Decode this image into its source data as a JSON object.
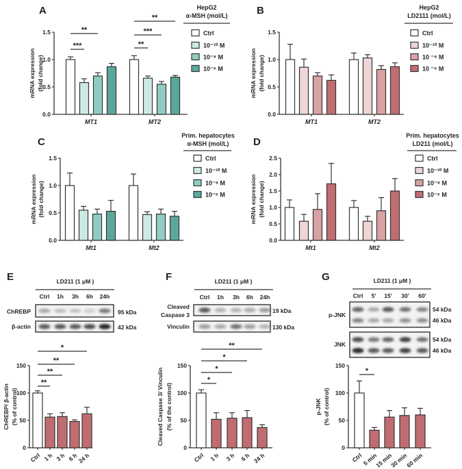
{
  "chart_data": [
    {
      "panel": "A",
      "type": "bar",
      "legend_title": [
        "HepG2",
        "α-MSH (mol/L)"
      ],
      "ylabel": [
        "mRNA expression",
        "(fold change)"
      ],
      "ylim": [
        0,
        1.5
      ],
      "yticks": [
        "0.0",
        "0.5",
        "1.0",
        "1.5"
      ],
      "categories": [
        "MT1",
        "MT2"
      ],
      "series": [
        {
          "name": "Ctrl",
          "color": "#ffffff",
          "values": [
            1.0,
            1.0
          ],
          "errors": [
            0.05,
            0.07
          ]
        },
        {
          "name": "10⁻¹⁰ M",
          "color": "#cde9e4",
          "values": [
            0.58,
            0.66
          ],
          "errors": [
            0.07,
            0.04
          ]
        },
        {
          "name": "10⁻⁸ M",
          "color": "#8fcdc3",
          "values": [
            0.7,
            0.55
          ],
          "errors": [
            0.06,
            0.05
          ]
        },
        {
          "name": "10⁻⁶ M",
          "color": "#5aa89c",
          "values": [
            0.87,
            0.68
          ],
          "errors": [
            0.06,
            0.03
          ]
        }
      ],
      "significance": [
        {
          "group": 0,
          "from": 0,
          "to": 1,
          "label": "***"
        },
        {
          "group": 0,
          "from": 0,
          "to": 2,
          "label": "**"
        },
        {
          "group": 1,
          "from": 0,
          "to": 1,
          "label": "**"
        },
        {
          "group": 1,
          "from": 0,
          "to": 2,
          "label": "***"
        },
        {
          "group": 1,
          "from": 0,
          "to": 3,
          "label": "**"
        }
      ]
    },
    {
      "panel": "B",
      "type": "bar",
      "legend_title": [
        "HepG2",
        "LD2111 (mol/L)"
      ],
      "ylabel": [
        "mRNA expression",
        "(fold change)"
      ],
      "ylim": [
        0,
        1.5
      ],
      "yticks": [
        "0.0",
        "0.5",
        "1.0",
        "1.5"
      ],
      "categories": [
        "MT1",
        "MT2"
      ],
      "series": [
        {
          "name": "Ctrl",
          "color": "#ffffff",
          "values": [
            1.0,
            1.0
          ],
          "errors": [
            0.28,
            0.12
          ]
        },
        {
          "name": "10⁻¹⁰ M",
          "color": "#eed5d6",
          "values": [
            0.86,
            1.03
          ],
          "errors": [
            0.15,
            0.06
          ]
        },
        {
          "name": "10 ⁻⁸ M",
          "color": "#d8a2a4",
          "values": [
            0.7,
            0.82
          ],
          "errors": [
            0.06,
            0.07
          ]
        },
        {
          "name": "10 ⁻⁶ M",
          "color": "#c06d72",
          "values": [
            0.62,
            0.87
          ],
          "errors": [
            0.1,
            0.07
          ]
        }
      ],
      "significance": []
    },
    {
      "panel": "C",
      "type": "bar",
      "legend_title": [
        "Prim. hepatocytes",
        "α-MSH (mol/L)"
      ],
      "ylabel": [
        "mRNA expression",
        "(fold change)"
      ],
      "ylim": [
        0,
        1.5
      ],
      "yticks": [
        "0.0",
        "0.5",
        "1.0",
        "1.5"
      ],
      "categories": [
        "Mt1",
        "Mt2"
      ],
      "series": [
        {
          "name": "Ctrl",
          "color": "#ffffff",
          "values": [
            1.0,
            1.0
          ],
          "errors": [
            0.23,
            0.21
          ]
        },
        {
          "name": "10⁻¹⁰ M",
          "color": "#cde9e4",
          "values": [
            0.55,
            0.47
          ],
          "errors": [
            0.07,
            0.05
          ]
        },
        {
          "name": "10⁻⁸ M",
          "color": "#8fcdc3",
          "values": [
            0.48,
            0.48
          ],
          "errors": [
            0.09,
            0.09
          ]
        },
        {
          "name": "10⁻⁶ M",
          "color": "#5aa89c",
          "values": [
            0.53,
            0.44
          ],
          "errors": [
            0.2,
            0.09
          ]
        }
      ],
      "significance": []
    },
    {
      "panel": "D",
      "type": "bar",
      "legend_title": [
        "Prim. hepatocytes",
        "LD211 (mol/L)"
      ],
      "ylabel": [
        "mRNA expression",
        "(fold change)"
      ],
      "ylim": [
        0,
        2.5
      ],
      "yticks": [
        "0.0",
        "0.5",
        "1.0",
        "1.5",
        "2.0",
        "2.5"
      ],
      "categories": [
        "Mt1",
        "Mt2"
      ],
      "series": [
        {
          "name": "Ctrl",
          "color": "#ffffff",
          "values": [
            1.0,
            1.0
          ],
          "errors": [
            0.23,
            0.21
          ]
        },
        {
          "name": "10⁻¹⁰ M",
          "color": "#eed5d6",
          "values": [
            0.58,
            0.58
          ],
          "errors": [
            0.21,
            0.15
          ]
        },
        {
          "name": "10⁻⁸ M",
          "color": "#d8a2a4",
          "values": [
            0.94,
            0.9
          ],
          "errors": [
            0.48,
            0.4
          ]
        },
        {
          "name": "10⁻⁶ M",
          "color": "#c06d72",
          "values": [
            1.72,
            1.5
          ],
          "errors": [
            0.62,
            0.38
          ]
        }
      ],
      "significance": []
    },
    {
      "panel": "E",
      "type": "bar",
      "ylabel": [
        "ChREBP/ β-actin",
        "(% of control)"
      ],
      "ylim": [
        0,
        150
      ],
      "yticks": [
        "0",
        "50",
        "100",
        "150"
      ],
      "categories": [
        "Ctrl",
        "1 h",
        "3 h",
        "6 h",
        "24 h"
      ],
      "colors": [
        "#ffffff",
        "#c06d72",
        "#c06d72",
        "#c06d72",
        "#c06d72"
      ],
      "values": [
        100,
        56,
        57,
        48,
        62
      ],
      "errors": [
        4,
        6,
        7,
        3,
        12
      ],
      "significance": [
        {
          "from": 0,
          "to": 1,
          "label": "**"
        },
        {
          "from": 0,
          "to": 2,
          "label": "**"
        },
        {
          "from": 0,
          "to": 3,
          "label": "**"
        },
        {
          "from": 0,
          "to": 4,
          "label": "*"
        }
      ],
      "blot": {
        "title": "LD211 (1 μM )",
        "lanes": [
          "Ctrl",
          "1h",
          "3h",
          "6h",
          "24h"
        ],
        "rows": [
          {
            "label": [
              "ChREBP"
            ],
            "kda": [
              "95 kDa"
            ],
            "bands": [
              [
                0.35,
                0.25,
                0.2,
                0.18,
                0.55
              ]
            ]
          },
          {
            "label": [
              "β-actin"
            ],
            "kda": [
              "42 kDa"
            ],
            "bands": [
              [
                0.7,
                0.7,
                0.7,
                0.75,
                0.95
              ]
            ]
          }
        ]
      }
    },
    {
      "panel": "F",
      "type": "bar",
      "ylabel": [
        "Cleaved Caspase 3/ Vinculin",
        "(% of the control)"
      ],
      "ylim": [
        0,
        150
      ],
      "yticks": [
        "0",
        "50",
        "100",
        "150"
      ],
      "categories": [
        "Ctrl",
        "1 h",
        "3 h",
        "6 h",
        "24 h"
      ],
      "colors": [
        "#ffffff",
        "#c06d72",
        "#c06d72",
        "#c06d72",
        "#c06d72"
      ],
      "values": [
        100,
        52,
        54,
        55,
        37
      ],
      "errors": [
        6,
        12,
        10,
        13,
        5
      ],
      "significance": [
        {
          "from": 0,
          "to": 1,
          "label": "*"
        },
        {
          "from": 0,
          "to": 2,
          "label": "*"
        },
        {
          "from": 0,
          "to": 3,
          "label": "*"
        },
        {
          "from": 0,
          "to": 4,
          "label": "**"
        }
      ],
      "blot": {
        "title": "LD211 (1 μM )",
        "lanes": [
          "Ctrl",
          "1h",
          "3h",
          "6h",
          "24h"
        ],
        "rows": [
          {
            "label": [
              "Cleaved",
              "Caspase 3"
            ],
            "kda": [
              "19 kDa"
            ],
            "bands": [
              [
                0.7,
                0.3,
                0.3,
                0.35,
                0.4
              ]
            ]
          },
          {
            "label": [
              "Vinculin"
            ],
            "kda": [
              "130 kDa"
            ],
            "bands": [
              [
                0.4,
                0.35,
                0.6,
                0.4,
                0.3
              ]
            ]
          }
        ]
      }
    },
    {
      "panel": "G",
      "type": "bar",
      "ylabel": [
        "p-JNK",
        "(% of control)"
      ],
      "ylim": [
        0,
        150
      ],
      "yticks": [
        "0",
        "50",
        "100",
        "150"
      ],
      "categories": [
        "Ctrl",
        "5 min",
        "15 min",
        "30 min",
        "60 min"
      ],
      "colors": [
        "#ffffff",
        "#c06d72",
        "#c06d72",
        "#c06d72",
        "#c06d72"
      ],
      "values": [
        100,
        32,
        56,
        59,
        60
      ],
      "errors": [
        22,
        5,
        12,
        14,
        12
      ],
      "significance": [
        {
          "from": 0,
          "to": 1,
          "label": "*"
        }
      ],
      "blot": {
        "title": "LD211 (1 μM )",
        "lanes": [
          "Ctrl",
          "5'",
          "15'",
          "30'",
          "60'"
        ],
        "rows": [
          {
            "label": [
              "p-JNK"
            ],
            "kda": [
              "54 kDa",
              "46 kDa"
            ],
            "bands": [
              [
                0.65,
                0.35,
                0.7,
                0.6,
                0.5
              ],
              [
                0.5,
                0.35,
                0.35,
                0.45,
                0.45
              ]
            ]
          },
          {
            "label": [
              "JNK"
            ],
            "kda": [
              "54 kDa",
              "46 kDa"
            ],
            "bands": [
              [
                0.75,
                0.55,
                0.65,
                0.8,
                0.6
              ],
              [
                0.9,
                0.7,
                0.7,
                0.8,
                0.7
              ]
            ]
          }
        ]
      }
    }
  ]
}
